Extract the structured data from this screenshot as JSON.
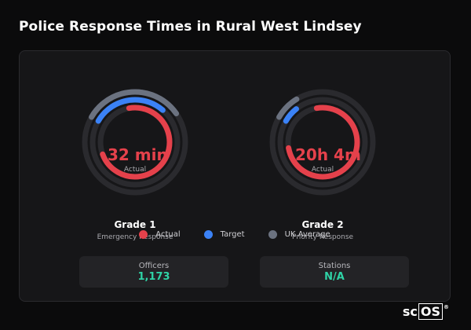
{
  "title": "Police Response Times in Rural West Lindsey",
  "gauges": [
    {
      "value": "32 min",
      "sublabel": "Actual",
      "grade": "Grade 1",
      "description": "Emergency Response",
      "levels": {
        "actual": 0.72,
        "target": 0.28,
        "uk_average": 0.32
      }
    },
    {
      "value": "20h 4m",
      "sublabel": "Actual",
      "grade": "Grade 2",
      "description": "Priority Response",
      "levels": {
        "actual": 0.75,
        "target": 0.06,
        "uk_average": 0.08
      }
    }
  ],
  "legend": [
    {
      "label": "Actual",
      "color": "#e5414b"
    },
    {
      "label": "Target",
      "color": "#3b82f6"
    },
    {
      "label": "UK Average",
      "color": "#6b7280"
    }
  ],
  "stats": [
    {
      "label": "Officers",
      "value": "1,173"
    },
    {
      "label": "Stations",
      "value": "N/A"
    }
  ],
  "brand": {
    "prefix": "sc",
    "box": "OS",
    "mark": "®"
  }
}
